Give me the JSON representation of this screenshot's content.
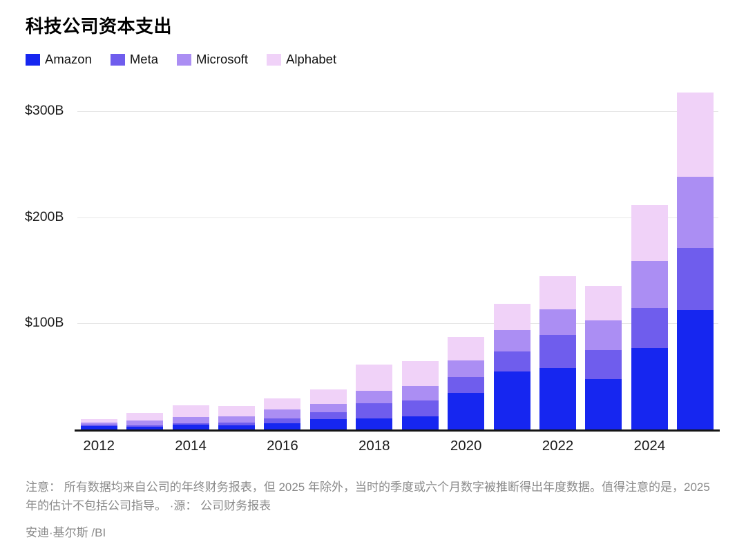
{
  "title": "科技公司资本支出",
  "legend": [
    {
      "label": "Amazon",
      "color": "#1626f0"
    },
    {
      "label": "Meta",
      "color": "#6f5ded"
    },
    {
      "label": "Microsoft",
      "color": "#ab8ef3"
    },
    {
      "label": "Alphabet",
      "color": "#f0d2f8"
    }
  ],
  "chart_data": {
    "type": "bar",
    "stacked": true,
    "title": "科技公司资本支出",
    "unit": "$B",
    "categories": [
      "2012",
      "2013",
      "2014",
      "2015",
      "2016",
      "2017",
      "2018",
      "2019",
      "2020",
      "2021",
      "2022",
      "2023",
      "2024",
      "2025"
    ],
    "x_tick_labels_shown": [
      "2012",
      "2014",
      "2016",
      "2018",
      "2020",
      "2022",
      "2024"
    ],
    "series": [
      {
        "name": "Amazon",
        "color": "#1626f0",
        "values": [
          3.8,
          3.4,
          4.9,
          4.6,
          6.7,
          10.1,
          11.3,
          12.7,
          35.0,
          55.4,
          58.3,
          48.1,
          77.7,
          113.0
        ]
      },
      {
        "name": "Meta",
        "color": "#6f5ded",
        "values": [
          1.2,
          1.4,
          1.8,
          2.5,
          4.5,
          6.7,
          13.9,
          15.1,
          15.1,
          18.6,
          31.4,
          27.3,
          37.3,
          59.0
        ]
      },
      {
        "name": "Microsoft",
        "color": "#ab8ef3",
        "values": [
          2.3,
          4.3,
          5.5,
          5.9,
          8.3,
          8.1,
          11.6,
          13.9,
          15.4,
          20.6,
          23.9,
          28.1,
          44.5,
          67.0
        ]
      },
      {
        "name": "Alphabet",
        "color": "#f0d2f8",
        "values": [
          3.3,
          7.4,
          11.0,
          9.9,
          10.2,
          13.2,
          25.1,
          23.5,
          22.3,
          24.6,
          31.5,
          32.3,
          52.5,
          79.0
        ]
      }
    ],
    "y_ticks": [
      {
        "value": 100,
        "label": "$100B"
      },
      {
        "value": 200,
        "label": "$200B"
      },
      {
        "value": 300,
        "label": "$300B"
      }
    ],
    "ylim": [
      0,
      331.8
    ],
    "grid": "horizontal",
    "legend_position": "top-left"
  },
  "footnote": {
    "text": "注意： 所有数据均来自公司的年终财务报表，但 2025 年除外，当时的季度或六个月数字被推断得出年度数据。值得注意的是，2025 年的估计不包括公司指导。 ·源： 公司财务报表"
  },
  "credit": "安迪·基尔斯 /BI"
}
